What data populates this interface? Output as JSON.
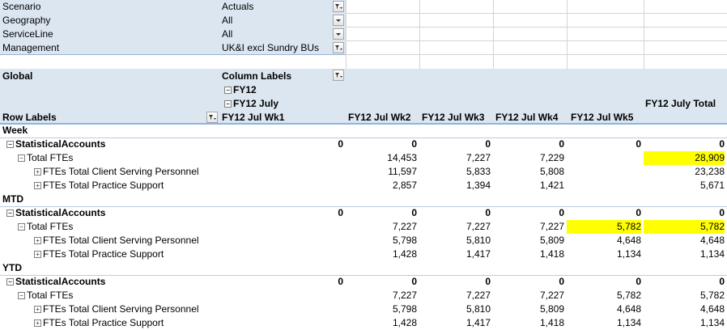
{
  "filters": [
    {
      "label": "Scenario",
      "value": "Actuals",
      "icon": "filter-dropdown-icon"
    },
    {
      "label": "Geography",
      "value": "All",
      "icon": "chevron-down-icon"
    },
    {
      "label": "ServiceLine",
      "value": "All",
      "icon": "chevron-down-icon"
    },
    {
      "label": "Management",
      "value": "UK&I excl Sundry BUs",
      "icon": "filter-dropdown-icon"
    }
  ],
  "pivot": {
    "corner": "Global",
    "column_labels": "Column Labels",
    "row_labels": "Row Labels",
    "fy": "FY12",
    "month": "FY12 July",
    "weeks": [
      "FY12 Jul Wk1",
      "FY12 Jul Wk2",
      "FY12 Jul Wk3",
      "FY12 Jul Wk4",
      "FY12 Jul Wk5"
    ],
    "total_header": "FY12 July Total",
    "highlight_color": "#ffff00",
    "sections": [
      {
        "name": "Week",
        "rows": [
          {
            "label": "StatisticalAccounts",
            "level": 0,
            "expander": "minus",
            "values": [
              "0",
              "0",
              "0",
              "0",
              "0",
              "0"
            ]
          },
          {
            "label": "Total FTEs",
            "level": 1,
            "expander": "minus",
            "values": [
              "",
              "14,453",
              "7,227",
              "7,229",
              "",
              "28,909"
            ],
            "highlight": [
              5
            ]
          },
          {
            "label": "FTEs Total Client Serving Personnel",
            "level": 2,
            "expander": "plus",
            "values": [
              "",
              "11,597",
              "5,833",
              "5,808",
              "",
              "23,238"
            ]
          },
          {
            "label": "FTEs Total Practice Support",
            "level": 2,
            "expander": "plus",
            "values": [
              "",
              "2,857",
              "1,394",
              "1,421",
              "",
              "5,671"
            ]
          }
        ]
      },
      {
        "name": "MTD",
        "rows": [
          {
            "label": "StatisticalAccounts",
            "level": 0,
            "expander": "minus",
            "values": [
              "0",
              "0",
              "0",
              "0",
              "0",
              "0"
            ]
          },
          {
            "label": "Total FTEs",
            "level": 1,
            "expander": "minus",
            "values": [
              "",
              "7,227",
              "7,227",
              "7,227",
              "5,782",
              "5,782"
            ],
            "highlight": [
              4,
              5
            ]
          },
          {
            "label": "FTEs Total Client Serving Personnel",
            "level": 2,
            "expander": "plus",
            "values": [
              "",
              "5,798",
              "5,810",
              "5,809",
              "4,648",
              "4,648"
            ]
          },
          {
            "label": "FTEs Total Practice Support",
            "level": 2,
            "expander": "plus",
            "values": [
              "",
              "1,428",
              "1,417",
              "1,418",
              "1,134",
              "1,134"
            ]
          }
        ]
      },
      {
        "name": "YTD",
        "rows": [
          {
            "label": "StatisticalAccounts",
            "level": 0,
            "expander": "minus",
            "values": [
              "0",
              "0",
              "0",
              "0",
              "0",
              "0"
            ]
          },
          {
            "label": "Total FTEs",
            "level": 1,
            "expander": "minus",
            "values": [
              "",
              "7,227",
              "7,227",
              "7,227",
              "5,782",
              "5,782"
            ]
          },
          {
            "label": "FTEs Total Client Serving Personnel",
            "level": 2,
            "expander": "plus",
            "values": [
              "",
              "5,798",
              "5,810",
              "5,809",
              "4,648",
              "4,648"
            ]
          },
          {
            "label": "FTEs Total Practice Support",
            "level": 2,
            "expander": "plus",
            "values": [
              "",
              "1,428",
              "1,417",
              "1,418",
              "1,134",
              "1,134"
            ]
          }
        ]
      }
    ]
  }
}
